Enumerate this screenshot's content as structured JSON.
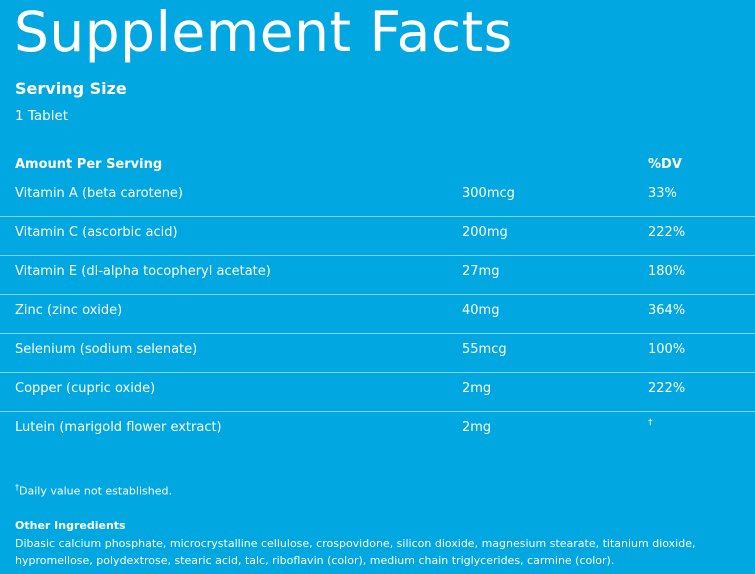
{
  "title": "Supplement Facts",
  "serving": {
    "label": "Serving Size",
    "value": "1 Tablet"
  },
  "table": {
    "header_name": "Amount Per Serving",
    "header_dv": "%DV",
    "rows": [
      {
        "name": "Vitamin A (beta carotene)",
        "amount": "300mcg",
        "dv": "33%"
      },
      {
        "name": "Vitamin C (ascorbic acid)",
        "amount": "200mg",
        "dv": "222%"
      },
      {
        "name": "Vitamin E (dl-alpha tocopheryl acetate)",
        "amount": "27mg",
        "dv": "180%"
      },
      {
        "name": "Zinc (zinc oxide)",
        "amount": "40mg",
        "dv": "364%"
      },
      {
        "name": "Selenium (sodium selenate)",
        "amount": "55mcg",
        "dv": "100%"
      },
      {
        "name": "Copper (cupric oxide)",
        "amount": "2mg",
        "dv": "222%"
      },
      {
        "name": "Lutein (marigold flower extract)",
        "amount": "2mg",
        "dv": "†"
      }
    ]
  },
  "footnote": {
    "symbol": "†",
    "text": "Daily value not established."
  },
  "other_ingredients": {
    "title": "Other Ingredients",
    "text": "Dibasic calcium phosphate, microcrystalline cellulose, crospovidone, silicon dioxide, magnesium stearate, titanium dioxide, hypromellose, polydextrose, stearic acid, talc, riboflavin (color), medium chain triglycerides, carmine (color)."
  }
}
